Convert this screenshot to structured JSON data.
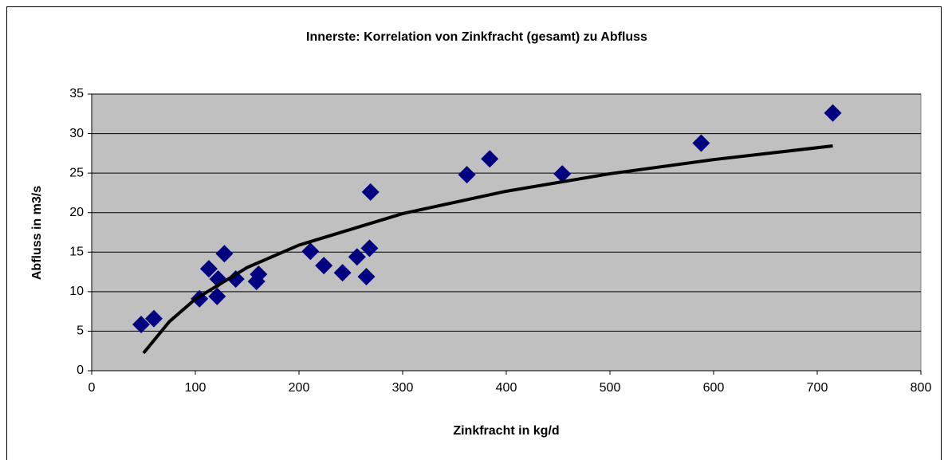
{
  "chart_data": {
    "type": "scatter",
    "title": "Innerste: Korrelation von Zinkfracht (gesamt) zu Abfluss",
    "x_label": "Zinkfracht in kg/d",
    "y_label": "Abfluss in m3/s",
    "x": [
      47.7,
      60,
      104,
      113,
      121,
      122,
      128,
      139,
      159,
      161,
      211,
      224,
      242,
      256,
      265,
      268,
      269,
      362,
      384,
      454,
      588,
      715
    ],
    "values": [
      5.85,
      6.6,
      9.1,
      12.9,
      9.4,
      11.6,
      14.8,
      11.6,
      11.3,
      12.2,
      15.1,
      13.3,
      12.4,
      14.4,
      11.9,
      15.5,
      22.6,
      24.8,
      26.8,
      24.9,
      28.8,
      32.6
    ],
    "color": "#000080",
    "trendline": {
      "x": [
        50,
        75,
        100,
        150,
        200,
        300,
        400,
        500,
        600,
        715
      ],
      "values": [
        2.23,
        6.22,
        9.06,
        13.06,
        15.89,
        19.88,
        22.71,
        24.92,
        26.71,
        28.44
      ],
      "color": "#000000"
    },
    "xlim": [
      0,
      800
    ],
    "xticks": [
      0,
      100,
      200,
      300,
      400,
      500,
      600,
      700,
      800
    ],
    "ylim": [
      0,
      35
    ],
    "yticks": [
      0,
      5,
      10,
      15,
      20,
      25,
      30,
      35
    ],
    "grid": true
  }
}
